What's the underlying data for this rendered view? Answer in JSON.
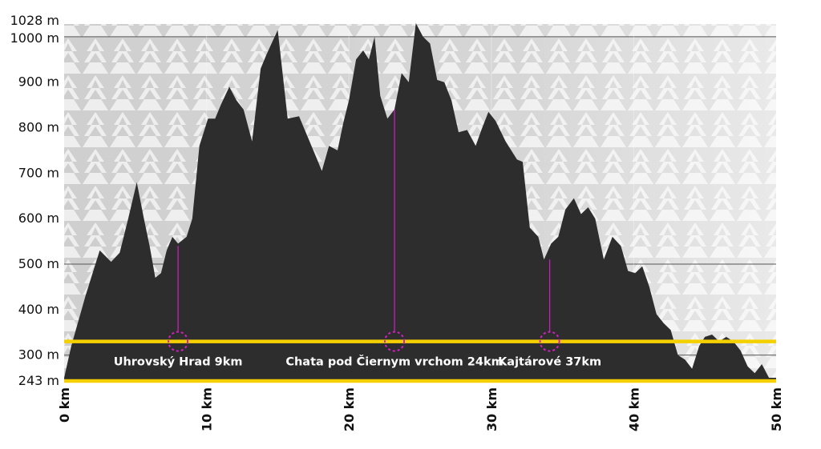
{
  "chart_data": {
    "type": "area",
    "xlabel": "",
    "ylabel": "",
    "xlim": [
      0,
      50
    ],
    "ylim": [
      243,
      1028
    ],
    "unit_x": "km",
    "unit_y": "m",
    "y_ticks": [
      {
        "value": 243,
        "label": "243 m"
      },
      {
        "value": 300,
        "label": "300 m"
      },
      {
        "value": 400,
        "label": "400 m"
      },
      {
        "value": 500,
        "label": "500 m"
      },
      {
        "value": 600,
        "label": "600 m"
      },
      {
        "value": 700,
        "label": "700 m"
      },
      {
        "value": 800,
        "label": "800 m"
      },
      {
        "value": 900,
        "label": "900 m"
      },
      {
        "value": 1000,
        "label": "1000 m"
      },
      {
        "value": 1028,
        "label": "1028 m"
      }
    ],
    "x_ticks": [
      {
        "value": 0,
        "label": "0 km"
      },
      {
        "value": 10,
        "label": "10 km"
      },
      {
        "value": 20,
        "label": "20 km"
      },
      {
        "value": 30,
        "label": "30 km"
      },
      {
        "value": 40,
        "label": "40 km"
      },
      {
        "value": 50,
        "label": "50 km"
      }
    ],
    "gridlines_y": [
      300,
      500,
      1000
    ],
    "profile": {
      "x": [
        0,
        0.5,
        1.5,
        2.5,
        3.3,
        3.9,
        4.5,
        5.1,
        5.6,
        6.0,
        6.4,
        6.8,
        7.2,
        7.6,
        8.0,
        8.6,
        9.0,
        9.5,
        10.1,
        10.6,
        11.0,
        11.6,
        12.1,
        12.6,
        13.2,
        13.8,
        14.2,
        15.0,
        15.7,
        16.5,
        17.1,
        17.5,
        18.1,
        18.6,
        19.2,
        19.6,
        20.0,
        20.5,
        21.0,
        21.4,
        21.8,
        22.2,
        22.7,
        23.2,
        23.7,
        24.2,
        24.7,
        25.2,
        25.7,
        26.2,
        26.7,
        27.2,
        27.7,
        28.3,
        28.9,
        29.3,
        29.8,
        30.3,
        31.0,
        31.8,
        32.2,
        32.7,
        33.3,
        33.7,
        34.2,
        34.7,
        35.2,
        35.8,
        36.3,
        36.8,
        37.3,
        37.9,
        38.5,
        39.1,
        39.6,
        40.1,
        40.6,
        41.1,
        41.6,
        42.1,
        42.6,
        43.1,
        43.6,
        44.1,
        44.6,
        45.0,
        45.5,
        46.0,
        46.5,
        47.0,
        47.5,
        48.0,
        48.5,
        49.0,
        49.5,
        50.0
      ],
      "y": [
        250,
        320,
        430,
        530,
        505,
        525,
        600,
        680,
        600,
        540,
        470,
        480,
        530,
        560,
        545,
        560,
        600,
        760,
        820,
        820,
        850,
        890,
        860,
        840,
        770,
        930,
        960,
        1015,
        820,
        825,
        780,
        750,
        705,
        760,
        750,
        810,
        860,
        950,
        970,
        950,
        1000,
        870,
        820,
        840,
        920,
        900,
        1030,
        1000,
        985,
        905,
        900,
        860,
        790,
        795,
        760,
        795,
        835,
        815,
        770,
        730,
        725,
        580,
        560,
        510,
        545,
        560,
        620,
        645,
        610,
        625,
        600,
        510,
        560,
        540,
        485,
        480,
        495,
        450,
        390,
        370,
        355,
        300,
        290,
        270,
        320,
        340,
        345,
        330,
        340,
        330,
        310,
        275,
        260,
        280,
        250,
        250
      ]
    },
    "highlight_lines_y": [
      330,
      243
    ],
    "highlight_color": "#f5d000",
    "area_color": "#2d2d2d",
    "marker_color": "#d21fc2",
    "waypoints": [
      {
        "x": 8,
        "y": 540,
        "label": "Uhrovský Hrad 9km"
      },
      {
        "x": 23.2,
        "y": 840,
        "label": "Chata pod Čiernym vrchom 24km"
      },
      {
        "x": 34.1,
        "y": 510,
        "label": "Kajtárové 37km"
      }
    ]
  }
}
